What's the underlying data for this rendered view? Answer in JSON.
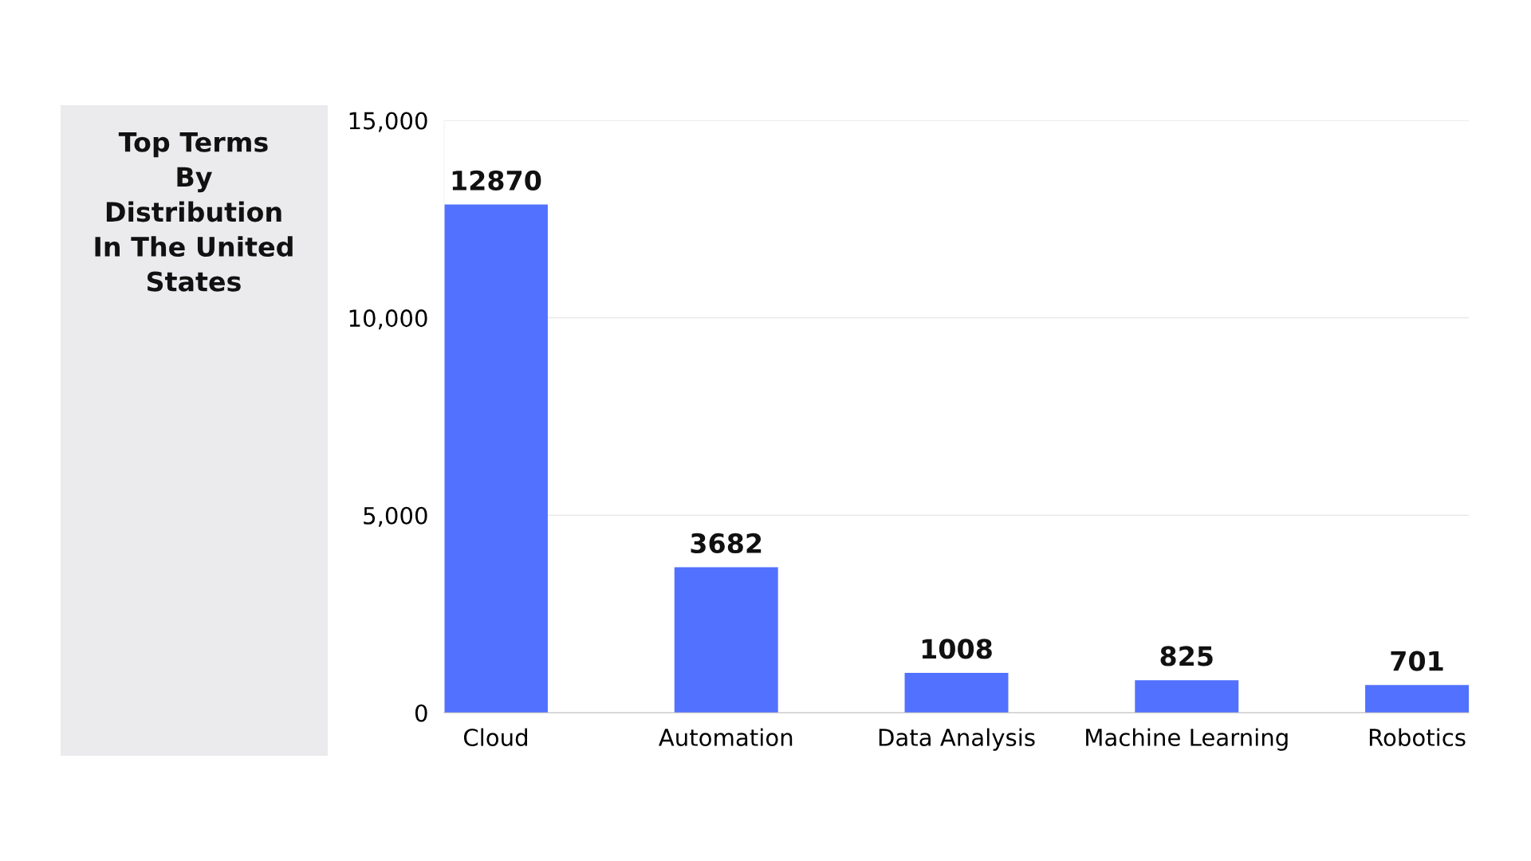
{
  "chart_data": {
    "type": "bar",
    "title": "Top Terms\nBy\nDistribution\nIn The United\nStates",
    "categories": [
      "Cloud",
      "Automation",
      "Data Analysis",
      "Machine Learning",
      "Robotics"
    ],
    "values": [
      12870,
      3682,
      1008,
      825,
      701
    ],
    "color": "#5271ff",
    "ylim": [
      0,
      15000
    ],
    "yticks": [
      {
        "value": 0,
        "label": "0"
      },
      {
        "value": 5000,
        "label": "5,000"
      },
      {
        "value": 10000,
        "label": "10,000"
      },
      {
        "value": 15000,
        "label": "15,000"
      }
    ],
    "grid": "y",
    "data_labels": true,
    "legend": false
  }
}
